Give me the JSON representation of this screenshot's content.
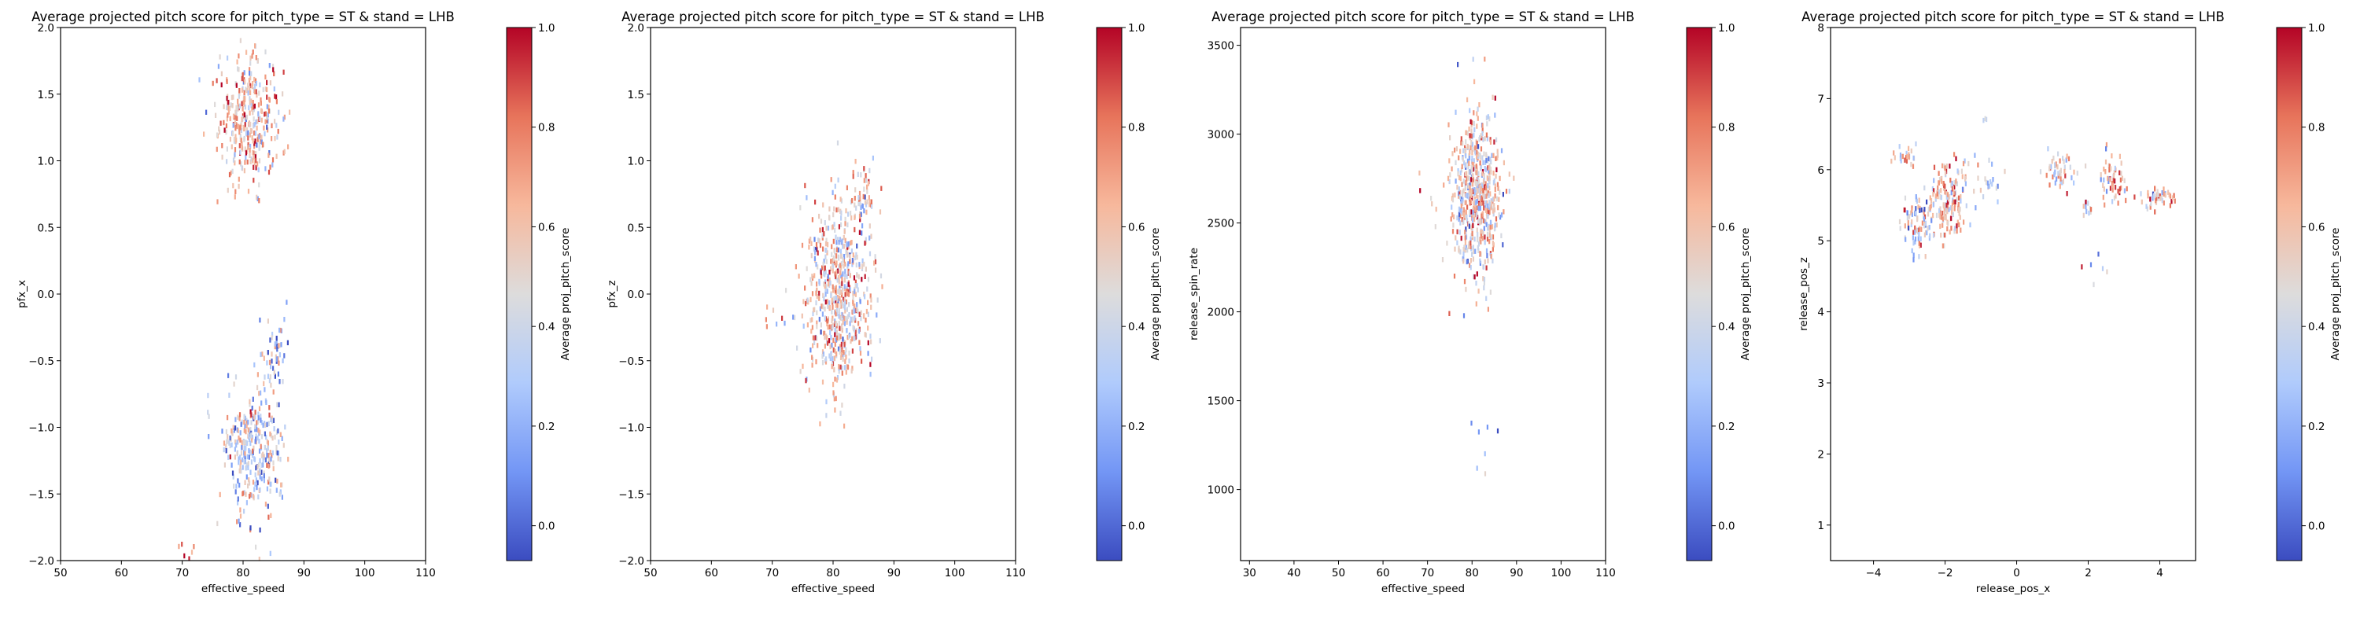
{
  "figure": {
    "colorbar": {
      "label": "Average proj_pitch_score",
      "ticks": [
        0.0,
        0.2,
        0.4,
        0.6,
        0.8,
        1.0
      ],
      "tick_labels": [
        "0.0",
        "0.2",
        "0.4",
        "0.6",
        "0.8",
        "1.0"
      ],
      "range": [
        -0.07,
        1.0
      ],
      "colormap": "coolwarm",
      "colors": [
        "#3b4cc0",
        "#7396f5",
        "#b0cbfc",
        "#dddcdc",
        "#f7b89c",
        "#e7745b",
        "#b40426"
      ]
    }
  },
  "chart_data": [
    {
      "type": "heatmap",
      "title": "Average projected pitch score for pitch_type = ST & stand = LHB",
      "xlabel": "effective_speed",
      "ylabel": "pfx_x",
      "xlim": [
        50,
        110
      ],
      "ylim": [
        -2.0,
        2.0
      ],
      "xticks": [
        50,
        60,
        70,
        80,
        90,
        100,
        110
      ],
      "xtick_labels": [
        "50",
        "60",
        "70",
        "80",
        "90",
        "100",
        "110"
      ],
      "yticks": [
        -2.0,
        -1.5,
        -1.0,
        -0.5,
        0.0,
        0.5,
        1.0,
        1.5,
        2.0
      ],
      "ytick_labels": [
        "−2.0",
        "−1.5",
        "−1.0",
        "−0.5",
        "0.0",
        "0.5",
        "1.0",
        "1.5",
        "2.0"
      ],
      "grid": false,
      "clusters": [
        {
          "x": 81.0,
          "y": 1.3,
          "sx": 2.6,
          "sy": 0.22,
          "n": 360,
          "mean": 0.62
        },
        {
          "x": 82.0,
          "y": -1.15,
          "sx": 2.6,
          "sy": 0.25,
          "n": 330,
          "mean": 0.42
        },
        {
          "x": 85.5,
          "y": -0.45,
          "sx": 1.2,
          "sy": 0.15,
          "n": 45,
          "mean": 0.3
        },
        {
          "x": 70.0,
          "y": -1.9,
          "sx": 1.2,
          "sy": 0.06,
          "n": 6,
          "mean": 0.75
        }
      ]
    },
    {
      "type": "heatmap",
      "title": "Average projected pitch score for pitch_type = ST & stand = LHB",
      "xlabel": "effective_speed",
      "ylabel": "pfx_z",
      "xlim": [
        50,
        110
      ],
      "ylim": [
        -2.0,
        2.0
      ],
      "xticks": [
        50,
        60,
        70,
        80,
        90,
        100,
        110
      ],
      "xtick_labels": [
        "50",
        "60",
        "70",
        "80",
        "90",
        "100",
        "110"
      ],
      "yticks": [
        -2.0,
        -1.5,
        -1.0,
        -0.5,
        0.0,
        0.5,
        1.0,
        1.5,
        2.0
      ],
      "ytick_labels": [
        "−2.0",
        "−1.5",
        "−1.0",
        "−0.5",
        "0.0",
        "0.5",
        "1.0",
        "1.5",
        "2.0"
      ],
      "grid": false,
      "clusters": [
        {
          "x": 81.0,
          "y": 0.0,
          "sx": 2.6,
          "sy": 0.35,
          "n": 640,
          "mean": 0.55
        },
        {
          "x": 84.5,
          "y": 0.75,
          "sx": 1.2,
          "sy": 0.15,
          "n": 50,
          "mean": 0.6
        },
        {
          "x": 70.0,
          "y": -0.2,
          "sx": 1.5,
          "sy": 0.12,
          "n": 6,
          "mean": 0.7
        }
      ]
    },
    {
      "type": "heatmap",
      "title": "Average projected pitch score for pitch_type = ST & stand = LHB",
      "xlabel": "effective_speed",
      "ylabel": "release_spin_rate",
      "xlim": [
        28,
        110
      ],
      "ylim": [
        600,
        3600
      ],
      "xticks": [
        30,
        40,
        50,
        60,
        70,
        80,
        90,
        100,
        110
      ],
      "xtick_labels": [
        "30",
        "40",
        "50",
        "60",
        "70",
        "80",
        "90",
        "100",
        "110"
      ],
      "yticks": [
        1000,
        1500,
        2000,
        2500,
        3000,
        3500
      ],
      "ytick_labels": [
        "1000",
        "1500",
        "2000",
        "2500",
        "3000",
        "3500"
      ],
      "grid": false,
      "clusters": [
        {
          "x": 81.0,
          "y": 2650,
          "sx": 2.8,
          "sy": 230,
          "n": 620,
          "mean": 0.55
        },
        {
          "x": 82.0,
          "y": 1150,
          "sx": 1.5,
          "sy": 180,
          "n": 7,
          "mean": 0.3
        },
        {
          "x": 70.0,
          "y": 2650,
          "sx": 1.5,
          "sy": 150,
          "n": 5,
          "mean": 0.6
        }
      ]
    },
    {
      "type": "heatmap",
      "title": "Average projected pitch score for pitch_type = ST & stand = LHB",
      "xlabel": "release_pos_x",
      "ylabel": "release_pos_z",
      "xlim": [
        -5.2,
        5.0
      ],
      "ylim": [
        0.5,
        8.0
      ],
      "xticks": [
        -4,
        -2,
        0,
        2,
        4
      ],
      "xtick_labels": [
        "−4",
        "−2",
        "0",
        "2",
        "4"
      ],
      "yticks": [
        1,
        2,
        3,
        4,
        5,
        6,
        7,
        8
      ],
      "ytick_labels": [
        "1",
        "2",
        "3",
        "4",
        "5",
        "6",
        "7",
        "8"
      ],
      "grid": false,
      "clusters": [
        {
          "x": -1.9,
          "y": 5.6,
          "sx": 0.28,
          "sy": 0.25,
          "n": 160,
          "mean": 0.62
        },
        {
          "x": -2.7,
          "y": 5.25,
          "sx": 0.25,
          "sy": 0.2,
          "n": 90,
          "mean": 0.45
        },
        {
          "x": -3.1,
          "y": 6.2,
          "sx": 0.15,
          "sy": 0.07,
          "n": 25,
          "mean": 0.55
        },
        {
          "x": -1.0,
          "y": 5.9,
          "sx": 0.3,
          "sy": 0.15,
          "n": 22,
          "mean": 0.4
        },
        {
          "x": 1.2,
          "y": 6.0,
          "sx": 0.25,
          "sy": 0.15,
          "n": 50,
          "mean": 0.55
        },
        {
          "x": 1.95,
          "y": 5.45,
          "sx": 0.1,
          "sy": 0.06,
          "n": 12,
          "mean": 0.6
        },
        {
          "x": 2.7,
          "y": 5.85,
          "sx": 0.2,
          "sy": 0.18,
          "n": 55,
          "mean": 0.65
        },
        {
          "x": 4.0,
          "y": 5.6,
          "sx": 0.28,
          "sy": 0.08,
          "n": 45,
          "mean": 0.6
        },
        {
          "x": 2.3,
          "y": 4.65,
          "sx": 0.15,
          "sy": 0.15,
          "n": 6,
          "mean": 0.45
        },
        {
          "x": -0.8,
          "y": 6.7,
          "sx": 0.1,
          "sy": 0.06,
          "n": 3,
          "mean": 0.5
        }
      ]
    }
  ]
}
